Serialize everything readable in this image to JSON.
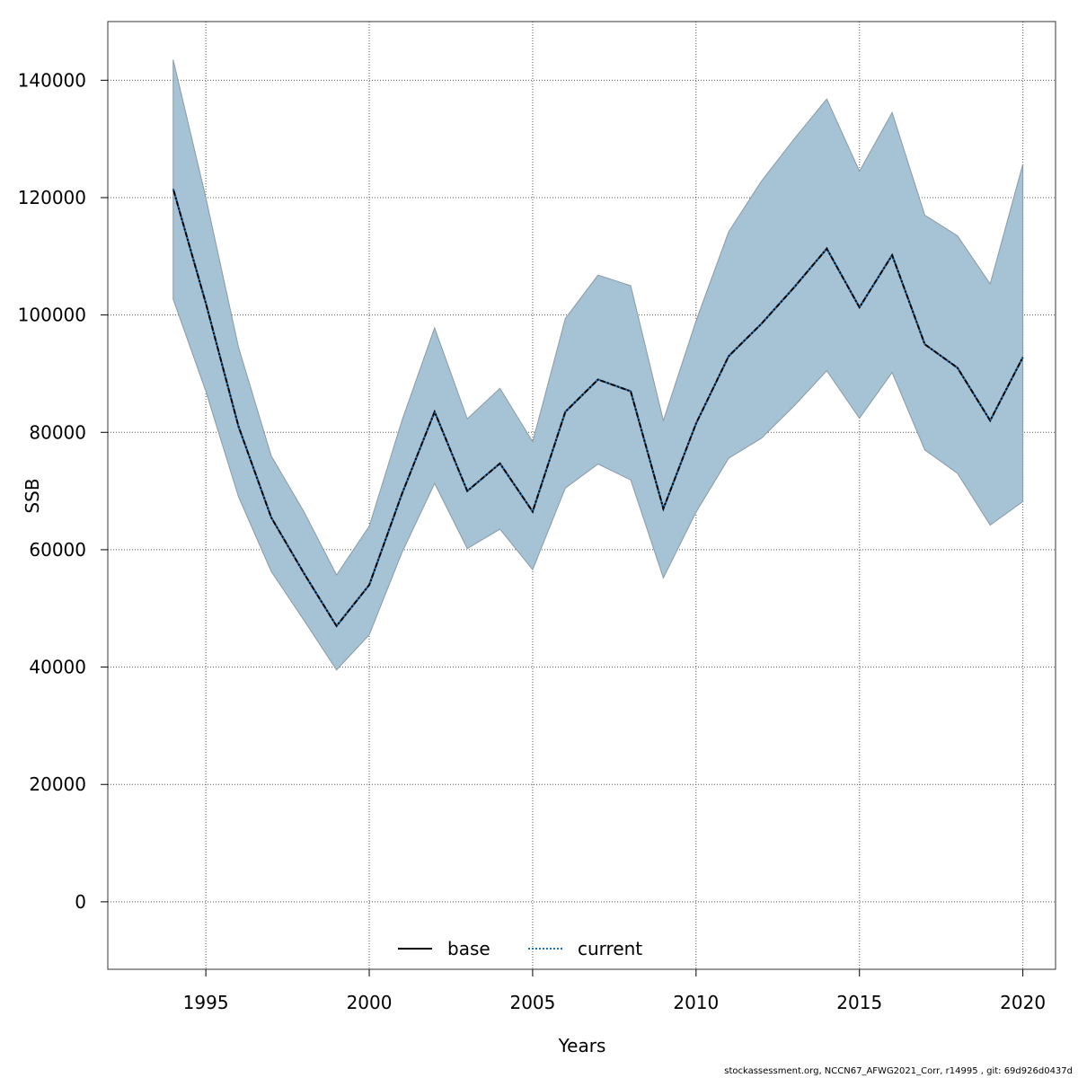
{
  "chart_data": {
    "type": "line",
    "xlabel": "Years",
    "ylabel": "SSB",
    "xlim": [
      1992,
      2021
    ],
    "ylim": [
      -11500,
      150000
    ],
    "x_ticks": [
      1995,
      2000,
      2005,
      2010,
      2015,
      2020
    ],
    "x_tick_labels": [
      "1995",
      "2000",
      "2005",
      "2010",
      "2015",
      "2020"
    ],
    "y_ticks": [
      0,
      20000,
      40000,
      60000,
      80000,
      100000,
      120000,
      140000
    ],
    "y_tick_labels": [
      "0",
      "20000",
      "40000",
      "60000",
      "80000",
      "100000",
      "120000",
      "140000"
    ],
    "grid": true,
    "legend_placement": "bottom-center",
    "x": [
      1994,
      1995,
      1996,
      1997,
      1998,
      1999,
      2000,
      2001,
      2002,
      2003,
      2004,
      2005,
      2006,
      2007,
      2008,
      2009,
      2010,
      2011,
      2012,
      2013,
      2014,
      2015,
      2016,
      2017,
      2018,
      2019,
      2020
    ],
    "series": [
      {
        "name": "base",
        "style": "solid",
        "color": "#000000",
        "values": [
          121500,
          102000,
          81000,
          65500,
          56000,
          47000,
          54000,
          69500,
          83500,
          70000,
          74700,
          66500,
          83500,
          89000,
          87000,
          67000,
          81500,
          93000,
          98500,
          104700,
          111300,
          101300,
          110200,
          95000,
          91000,
          82000,
          92800
        ]
      },
      {
        "name": "current",
        "style": "dotted",
        "color": "#1f6fb4",
        "values": [
          121500,
          102000,
          81000,
          65500,
          56000,
          47000,
          54000,
          69500,
          83500,
          70000,
          74700,
          66500,
          83500,
          89000,
          87000,
          67000,
          81500,
          93000,
          98500,
          104700,
          111300,
          101300,
          110200,
          95000,
          91000,
          82000,
          92800
        ]
      }
    ],
    "band": {
      "color": "#a5c3d4",
      "upper": [
        143500,
        120000,
        94500,
        76000,
        66500,
        55700,
        64000,
        82000,
        97800,
        82300,
        87500,
        78400,
        99400,
        106800,
        105000,
        82000,
        99000,
        114200,
        122800,
        130000,
        136800,
        124500,
        134500,
        117000,
        113500,
        105300,
        125700
      ],
      "lower": [
        102700,
        87000,
        69000,
        56300,
        48000,
        39500,
        45500,
        59500,
        71300,
        60200,
        63500,
        56600,
        70500,
        74600,
        71900,
        55200,
        66400,
        75600,
        79000,
        84500,
        90500,
        82400,
        90200,
        77000,
        73000,
        64200,
        68200
      ]
    }
  },
  "footer": "stockassessment.org, NCCN67_AFWG2021_Corr, r14995 , git: 69d926d0437d"
}
